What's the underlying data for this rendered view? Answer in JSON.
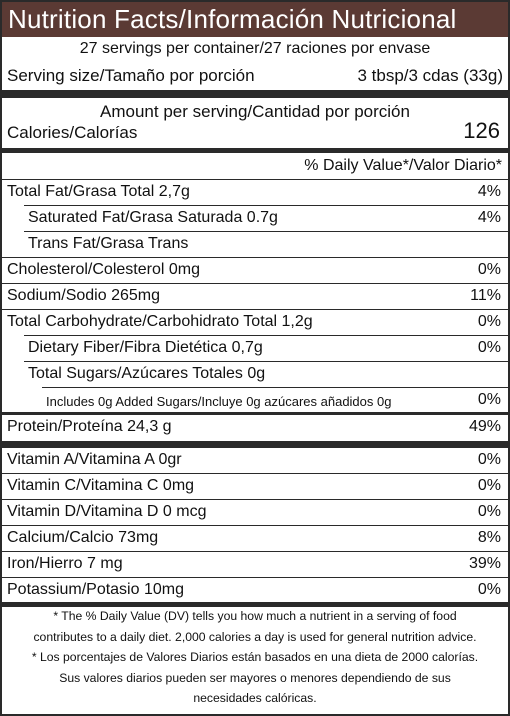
{
  "title": "Nutrition Facts/Información Nutricional",
  "servings_per_container": "27 servings per container/27 raciones por envase",
  "serving_size_label": "Serving size/Tamaño por porción",
  "serving_size_value": "3 tbsp/3 cdas (33g)",
  "amount_per_serving": "Amount per serving/Cantidad por porción",
  "calories_label": "Calories/Calorías",
  "calories_value": "126",
  "dv_header": "% Daily Value*/Valor Diario*",
  "nutrients": [
    {
      "name": "Total Fat/Grasa Total 2,7g",
      "dv": "4%"
    },
    {
      "name": "Saturated Fat/Grasa Saturada 0.7g",
      "dv": "4%"
    },
    {
      "name": "Trans Fat/Grasa Trans",
      "dv": ""
    },
    {
      "name": "Cholesterol/Colesterol 0mg",
      "dv": "0%"
    },
    {
      "name": "Sodium/Sodio 265mg",
      "dv": "11%"
    },
    {
      "name": "Total Carbohydrate/Carbohidrato Total 1,2g",
      "dv": "0%"
    },
    {
      "name": "Dietary Fiber/Fibra Dietética 0,7g",
      "dv": "0%"
    },
    {
      "name": "Total Sugars/Azúcares Totales 0g",
      "dv": ""
    },
    {
      "name": "Includes 0g Added Sugars/Incluye 0g azúcares añadidos 0g",
      "dv": "0%"
    },
    {
      "name": "Protein/Proteína 24,3 g",
      "dv": "49%"
    }
  ],
  "vitamins": [
    {
      "name": "Vitamin A/Vitamina A 0gr",
      "dv": "0%"
    },
    {
      "name": "Vitamin C/Vitamina C 0mg",
      "dv": "0%"
    },
    {
      "name": "Vitamin D/Vitamina D 0 mcg",
      "dv": "0%"
    },
    {
      "name": "Calcium/Calcio 73mg",
      "dv": "8%"
    },
    {
      "name": "Iron/Hierro 7 mg",
      "dv": "39%"
    },
    {
      "name": "Potassium/Potasio 10mg",
      "dv": "0%"
    }
  ],
  "footnote": [
    "* The % Daily Value (DV) tells you how much a nutrient in a serving of food",
    "contributes to a daily diet. 2,000 calories a day is used for general nutrition advice.",
    "* Los porcentajes de Valores Diarios están basados en una dieta de 2000 calorías.",
    "Sus valores diarios pueden ser mayores o menores dependiendo de sus",
    "necesidades calóricas."
  ]
}
